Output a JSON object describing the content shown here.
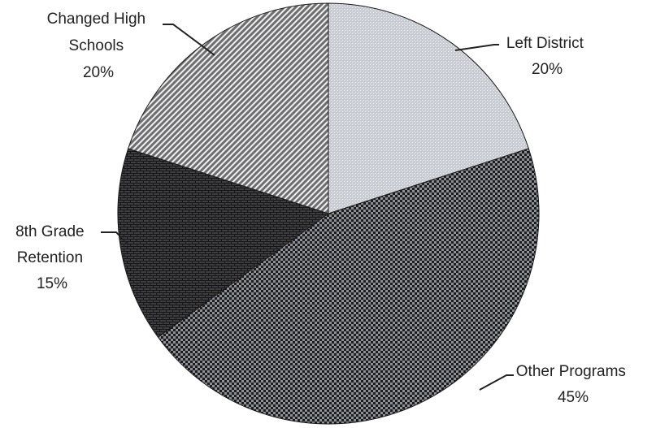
{
  "chart_data": {
    "type": "pie",
    "categories": [
      "Left District",
      "Other Programs",
      "8th Grade Retention",
      "Changed High Schools"
    ],
    "values": [
      20,
      45,
      15,
      20
    ],
    "units": "%",
    "labels": [
      {
        "lines": [
          "Left District",
          "20%"
        ]
      },
      {
        "lines": [
          "Other Programs",
          "45%"
        ]
      },
      {
        "lines": [
          "8th Grade",
          "Retention",
          "15%"
        ]
      },
      {
        "lines": [
          "Changed High",
          "Schools",
          "20%"
        ]
      }
    ],
    "start_angle_deg": 0,
    "direction": "clockwise",
    "legend": "none",
    "colors": [
      "#c9ccd2",
      "#8e9198",
      "#3e3e40",
      "#6e6e70"
    ],
    "pattern_fg": [
      "#f4f4f6",
      "#1c1c1c",
      "#161616",
      "#f0f0f0"
    ],
    "patterns": [
      "dots",
      "checker",
      "brick",
      "diagonal"
    ]
  }
}
